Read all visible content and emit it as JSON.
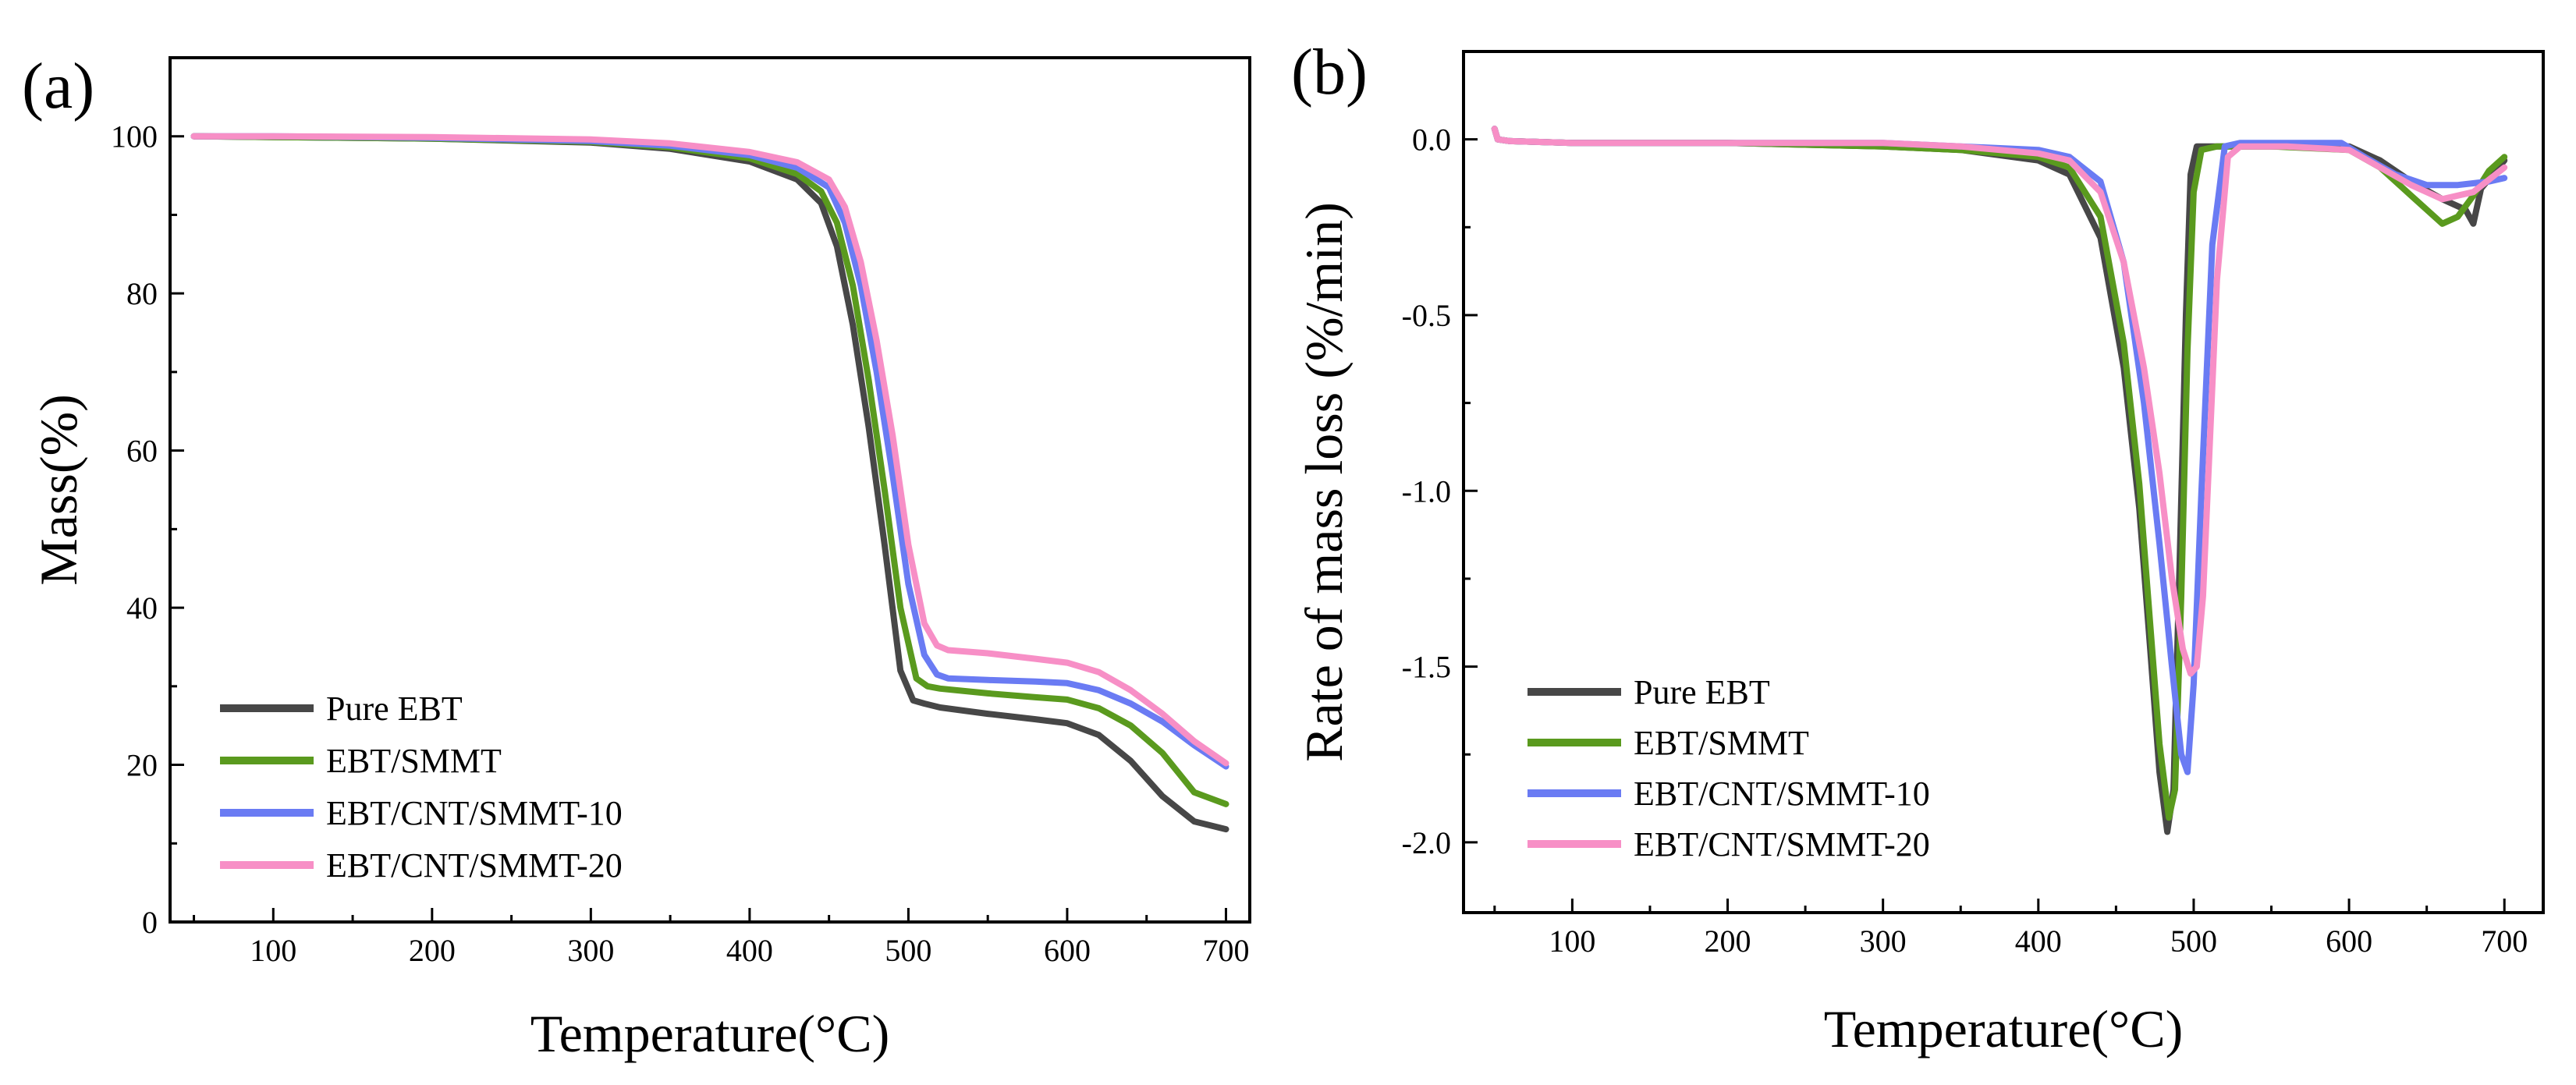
{
  "figure": {
    "colors": {
      "Pure EBT": "#474747",
      "EBT/SMMT": "#5a9a1e",
      "EBT/CNT/SMMT-10": "#6a7bf3",
      "EBT/CNT/SMMT-20": "#f78fc6"
    }
  },
  "chart_data": [
    {
      "type": "line",
      "panel_label": "(a)",
      "xlabel": "Temperature(°C)",
      "ylabel": "Mass(%)",
      "xlim": [
        35,
        715
      ],
      "ylim": [
        0,
        110
      ],
      "xticks": [
        100,
        200,
        300,
        400,
        500,
        600,
        700
      ],
      "yticks": [
        0,
        20,
        40,
        60,
        80,
        100
      ],
      "grid": false,
      "legend": {
        "position": "bottom-left",
        "entries": [
          "Pure EBT",
          "EBT/SMMT",
          "EBT/CNT/SMMT-10",
          "EBT/CNT/SMMT-20"
        ]
      },
      "series": [
        {
          "name": "Pure EBT",
          "color": "#474747",
          "x": [
            50,
            100,
            200,
            300,
            350,
            400,
            430,
            445,
            455,
            465,
            475,
            485,
            495,
            503,
            510,
            520,
            550,
            580,
            600,
            620,
            640,
            660,
            680,
            700
          ],
          "y": [
            100,
            99.9,
            99.7,
            99.2,
            98.4,
            96.8,
            94.5,
            91.5,
            86,
            76,
            63,
            48,
            32,
            28.2,
            27.8,
            27.3,
            26.5,
            25.8,
            25.3,
            23.8,
            20.5,
            16,
            12.8,
            11.8
          ]
        },
        {
          "name": "EBT/SMMT",
          "color": "#5a9a1e",
          "x": [
            50,
            100,
            200,
            300,
            350,
            400,
            430,
            445,
            455,
            465,
            475,
            485,
            495,
            505,
            512,
            520,
            550,
            580,
            600,
            620,
            640,
            660,
            680,
            700
          ],
          "y": [
            100,
            99.9,
            99.7,
            99.3,
            98.6,
            97.2,
            95.2,
            93,
            89,
            81,
            69,
            55,
            40,
            31,
            30,
            29.7,
            29.1,
            28.6,
            28.3,
            27.2,
            25,
            21.5,
            16.5,
            15
          ]
        },
        {
          "name": "EBT/CNT/SMMT-10",
          "color": "#6a7bf3",
          "x": [
            50,
            100,
            200,
            300,
            350,
            400,
            430,
            450,
            460,
            470,
            480,
            490,
            500,
            510,
            518,
            525,
            550,
            580,
            600,
            620,
            640,
            660,
            680,
            700
          ],
          "y": [
            100,
            100,
            99.8,
            99.4,
            98.8,
            97.6,
            96,
            93.5,
            89,
            81,
            70,
            57,
            43,
            34,
            31.5,
            31,
            30.8,
            30.6,
            30.4,
            29.5,
            27.8,
            25.5,
            22.5,
            19.8
          ]
        },
        {
          "name": "EBT/CNT/SMMT-20",
          "color": "#f78fc6",
          "x": [
            50,
            100,
            200,
            300,
            350,
            400,
            430,
            450,
            460,
            470,
            480,
            490,
            500,
            510,
            518,
            525,
            550,
            580,
            600,
            620,
            640,
            660,
            680,
            700
          ],
          "y": [
            100,
            100,
            99.9,
            99.6,
            99.1,
            98,
            96.7,
            94.5,
            91,
            84,
            74,
            62,
            48,
            38,
            35.2,
            34.6,
            34.2,
            33.5,
            33,
            31.8,
            29.5,
            26.5,
            23,
            20.2
          ]
        }
      ]
    },
    {
      "type": "line",
      "panel_label": "(b)",
      "xlabel": "Temperature(°C)",
      "ylabel": "Rate of mass loss (%/min)",
      "xlim": [
        30,
        725
      ],
      "ylim": [
        -2.2,
        0.25
      ],
      "xticks": [
        100,
        200,
        300,
        400,
        500,
        600,
        700
      ],
      "yticks": [
        0.0,
        -0.5,
        -1.0,
        -1.5,
        -2.0
      ],
      "ytick_labels": [
        "0.0",
        "-0.5",
        "-1.0",
        "-1.5",
        "-2.0"
      ],
      "grid": false,
      "legend": {
        "position": "bottom-left",
        "entries": [
          "Pure EBT",
          "EBT/SMMT",
          "EBT/CNT/SMMT-10",
          "EBT/CNT/SMMT-20"
        ]
      },
      "series": [
        {
          "name": "Pure EBT",
          "color": "#474747",
          "x": [
            50,
            52,
            60,
            100,
            200,
            300,
            350,
            400,
            420,
            440,
            455,
            465,
            472,
            478,
            483,
            487,
            491,
            495,
            498,
            502,
            510,
            550,
            600,
            620,
            640,
            660,
            675,
            680,
            685,
            700
          ],
          "y": [
            0.03,
            0.0,
            -0.005,
            -0.01,
            -0.01,
            -0.02,
            -0.03,
            -0.06,
            -0.1,
            -0.28,
            -0.65,
            -1.05,
            -1.45,
            -1.8,
            -1.97,
            -1.85,
            -1.2,
            -0.5,
            -0.1,
            -0.02,
            -0.02,
            -0.02,
            -0.02,
            -0.06,
            -0.12,
            -0.17,
            -0.2,
            -0.24,
            -0.14,
            -0.06
          ]
        },
        {
          "name": "EBT/SMMT",
          "color": "#5a9a1e",
          "x": [
            50,
            52,
            60,
            100,
            200,
            300,
            350,
            400,
            420,
            440,
            455,
            465,
            472,
            478,
            484,
            488,
            492,
            496,
            500,
            505,
            515,
            550,
            600,
            620,
            640,
            660,
            670,
            680,
            690,
            700
          ],
          "y": [
            0.03,
            0.0,
            -0.005,
            -0.01,
            -0.01,
            -0.02,
            -0.03,
            -0.05,
            -0.08,
            -0.22,
            -0.58,
            -0.98,
            -1.38,
            -1.72,
            -1.93,
            -1.85,
            -1.3,
            -0.6,
            -0.15,
            -0.03,
            -0.02,
            -0.02,
            -0.03,
            -0.08,
            -0.16,
            -0.24,
            -0.22,
            -0.16,
            -0.09,
            -0.05
          ]
        },
        {
          "name": "EBT/CNT/SMMT-10",
          "color": "#6a7bf3",
          "x": [
            50,
            52,
            60,
            100,
            200,
            300,
            350,
            400,
            420,
            440,
            455,
            468,
            478,
            486,
            492,
            496,
            500,
            505,
            512,
            520,
            530,
            560,
            595,
            610,
            630,
            650,
            670,
            690,
            700
          ],
          "y": [
            0.03,
            0.0,
            -0.005,
            -0.01,
            -0.01,
            -0.01,
            -0.02,
            -0.03,
            -0.05,
            -0.12,
            -0.35,
            -0.75,
            -1.15,
            -1.5,
            -1.75,
            -1.8,
            -1.55,
            -1.0,
            -0.3,
            -0.02,
            -0.01,
            -0.01,
            -0.01,
            -0.05,
            -0.1,
            -0.13,
            -0.13,
            -0.12,
            -0.11
          ]
        },
        {
          "name": "EBT/CNT/SMMT-20",
          "color": "#f78fc6",
          "x": [
            50,
            52,
            60,
            100,
            200,
            300,
            350,
            400,
            420,
            440,
            455,
            468,
            478,
            486,
            493,
            498,
            502,
            506,
            510,
            515,
            522,
            530,
            560,
            600,
            620,
            640,
            660,
            680,
            700
          ],
          "y": [
            0.03,
            0.0,
            -0.005,
            -0.01,
            -0.01,
            -0.01,
            -0.02,
            -0.04,
            -0.06,
            -0.15,
            -0.35,
            -0.65,
            -0.95,
            -1.25,
            -1.45,
            -1.52,
            -1.5,
            -1.3,
            -0.9,
            -0.4,
            -0.05,
            -0.02,
            -0.02,
            -0.03,
            -0.08,
            -0.13,
            -0.17,
            -0.15,
            -0.08
          ]
        }
      ]
    }
  ]
}
